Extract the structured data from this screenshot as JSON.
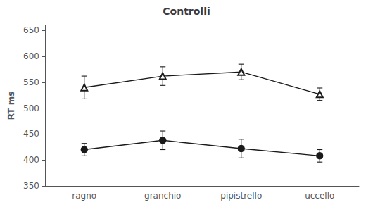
{
  "chart_data": {
    "type": "line",
    "title": "Controlli",
    "ylabel": "RT ms",
    "categories": [
      "ragno",
      "granchio",
      "pipistrello",
      "uccello"
    ],
    "series": [
      {
        "color": "#1a1a1a",
        "marker": "open_triangle",
        "values": [
          540,
          562,
          570,
          527
        ],
        "yerr": [
          22,
          18,
          15,
          12
        ]
      },
      {
        "color": "#1a1a1a",
        "marker": "circle",
        "values": [
          420,
          438,
          422,
          408
        ],
        "yerr": [
          12,
          18,
          18,
          12
        ]
      }
    ],
    "ylim": [
      350,
      660
    ],
    "yticks": [
      350,
      400,
      450,
      500,
      550,
      600,
      650
    ],
    "grid": false
  }
}
